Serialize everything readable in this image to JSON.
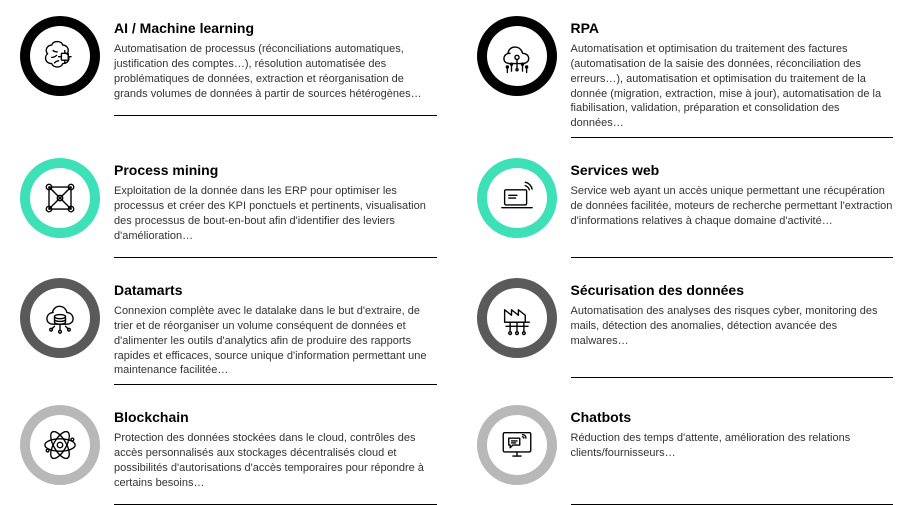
{
  "layout": {
    "columns": 2,
    "rows": 4,
    "background_color": "#ffffff",
    "title_fontsize": 14,
    "desc_fontsize": 11,
    "desc_color": "#333333",
    "title_color": "#000000",
    "ring_outer_diameter": 80,
    "ring_thickness": 10,
    "divider_color": "#000000"
  },
  "ring_palette": {
    "black": "#000000",
    "teal": "#3ee0b8",
    "dark_gray": "#5a5a5a",
    "light_gray": "#b8b8b8"
  },
  "items": [
    {
      "id": "ai_ml",
      "icon": "ai-brain",
      "ring_color": "#000000",
      "title": "AI / Machine learning",
      "desc": "Automatisation de processus (réconciliations automatiques, justification des comptes…), résolution automatisée des problématiques de données, extraction et réorganisation de grands volumes de données à partir de sources hétérogènes…"
    },
    {
      "id": "rpa",
      "icon": "rpa-cloud",
      "ring_color": "#000000",
      "title": "RPA",
      "desc": "Automatisation et optimisation du traitement des factures (automatisation de la saisie des données, réconciliation des erreurs…), automatisation et optimisation du traitement de la donnée (migration, extraction, mise à jour), automatisation de la fiabilisation, validation, préparation et consolidation des données…"
    },
    {
      "id": "process_mining",
      "icon": "graph-network",
      "ring_color": "#3ee0b8",
      "title": "Process mining",
      "desc": "Exploitation de la donnée dans les ERP pour optimiser les processus et créer des KPI ponctuels et pertinents, visualisation des processus de bout-en-bout afin d'identifier des leviers d'amélioration…"
    },
    {
      "id": "services_web",
      "icon": "laptop-wifi",
      "ring_color": "#3ee0b8",
      "title": "Services web",
      "desc": "Service web ayant un accès unique permettant une récupération de données facilitée, moteurs de recherche permettant l'extraction d'informations relatives à chaque domaine d'activité…"
    },
    {
      "id": "datamarts",
      "icon": "cloud-db",
      "ring_color": "#5a5a5a",
      "title": "Datamarts",
      "desc": "Connexion complète avec le datalake dans le but d'extraire, de trier et de réorganiser un volume conséquent de données et d'alimenter les outils d'analytics afin de produire des rapports rapides et efficaces, source unique d'information permettant une maintenance facilitée…"
    },
    {
      "id": "securisation",
      "icon": "factory-chip",
      "ring_color": "#5a5a5a",
      "title": "Sécurisation des données",
      "desc": "Automatisation des analyses des risques cyber, monitoring des mails, détection des anomalies, détection avancée des malwares…"
    },
    {
      "id": "blockchain",
      "icon": "atom",
      "ring_color": "#b8b8b8",
      "title": "Blockchain",
      "desc": "Protection des données stockées dans le cloud, contrôles des accès personnalisés aux stockages décentralisés cloud et possibilités d'autorisations d'accès temporaires pour répondre à certains besoins…"
    },
    {
      "id": "chatbots",
      "icon": "chatbot-screen",
      "ring_color": "#b8b8b8",
      "title": "Chatbots",
      "desc": "Réduction des temps d'attente, amélioration des relations clients/fournisseurs…"
    }
  ]
}
